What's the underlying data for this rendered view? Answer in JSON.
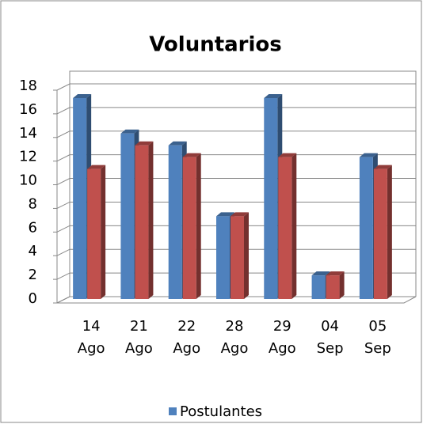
{
  "chart_data": {
    "type": "bar3d",
    "title": "Voluntarios",
    "categories": [
      "14 Ago",
      "21 Ago",
      "22 Ago",
      "28 Ago",
      "29 Ago",
      "04 Sep",
      "05 Sep"
    ],
    "series": [
      {
        "name": "Postulantes",
        "color": "#4f81bd",
        "values": [
          17,
          14,
          13,
          7,
          17,
          2,
          12
        ]
      },
      {
        "color": "#c0504d",
        "values": [
          11,
          13,
          12,
          7,
          12,
          2,
          11
        ]
      }
    ],
    "ylim": [
      0,
      18
    ],
    "yticks": [
      0,
      2,
      4,
      6,
      8,
      10,
      12,
      14,
      16,
      18
    ],
    "grid": true,
    "legend": "bottom"
  }
}
